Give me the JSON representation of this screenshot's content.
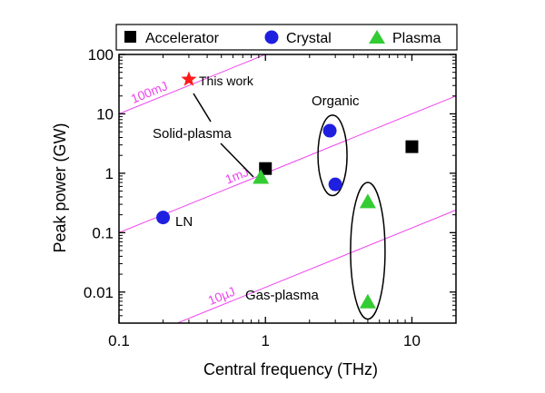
{
  "chart_data": {
    "type": "scatter",
    "xscale": "log",
    "yscale": "log",
    "xlim": [
      0.1,
      20
    ],
    "ylim": [
      0.003,
      100
    ],
    "xlabel": "Central frequency (THz)",
    "ylabel": "Peak power (GW)",
    "xticks": [
      {
        "value": 0.1,
        "label": "0.1"
      },
      {
        "value": 1,
        "label": "1"
      },
      {
        "value": 10,
        "label": "10"
      }
    ],
    "yticks": [
      {
        "value": 0.01,
        "label": "0.01"
      },
      {
        "value": 0.1,
        "label": "0.1"
      },
      {
        "value": 1,
        "label": "1"
      },
      {
        "value": 10,
        "label": "10"
      },
      {
        "value": 100,
        "label": "100"
      }
    ],
    "legend": {
      "position": "top",
      "entries": [
        {
          "name": "Accelerator",
          "marker": "square",
          "color": "#000000"
        },
        {
          "name": "Crystal",
          "marker": "circle",
          "color": "#1f1fe0"
        },
        {
          "name": "Plasma",
          "marker": "triangle",
          "color": "#33cc33"
        }
      ]
    },
    "series": [
      {
        "name": "Accelerator",
        "marker": "square",
        "color": "#000000",
        "points": [
          {
            "x": 1.0,
            "y": 1.2
          },
          {
            "x": 10.0,
            "y": 2.8
          }
        ]
      },
      {
        "name": "Crystal",
        "marker": "circle",
        "color": "#1f1fe0",
        "points": [
          {
            "x": 0.2,
            "y": 0.18
          },
          {
            "x": 2.75,
            "y": 5.2
          },
          {
            "x": 3.0,
            "y": 0.65
          }
        ]
      },
      {
        "name": "Plasma",
        "marker": "triangle",
        "color": "#33cc33",
        "points": [
          {
            "x": 0.93,
            "y": 0.85
          },
          {
            "x": 5.0,
            "y": 0.33
          },
          {
            "x": 5.0,
            "y": 0.0068
          }
        ]
      },
      {
        "name": "This work",
        "marker": "star",
        "color": "#ff1a1a",
        "points": [
          {
            "x": 0.3,
            "y": 38
          }
        ]
      }
    ],
    "energy_lines": {
      "color": "#ee44ee",
      "note": "constant pulse energy lines, power proportional to frequency",
      "lines": [
        {
          "label": "100mJ",
          "y_at_x1": 100
        },
        {
          "label": "1mJ",
          "y_at_x1": 1
        },
        {
          "label": "10µJ",
          "y_at_x1": 0.012
        }
      ]
    },
    "annotations": {
      "this_work": "This work",
      "solid_plasma": "Solid-plasma",
      "organic": "Organic",
      "gas_plasma": "Gas-plasma",
      "ln": "LN"
    },
    "groups": [
      {
        "label": "Organic",
        "x": 2.87,
        "y_min": 0.42,
        "y_max": 9.5
      },
      {
        "label": "Gas-plasma",
        "x": 5.0,
        "y_min": 0.0035,
        "y_max": 0.7
      }
    ]
  }
}
